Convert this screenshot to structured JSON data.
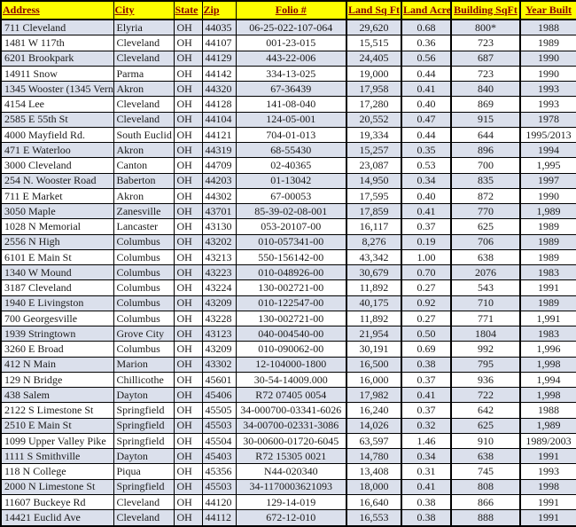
{
  "colors": {
    "header_bg": "#FFFF00",
    "header_text": "#8B0000",
    "row_alt_bg": "#DBE0EC",
    "row_bg": "#FFFFFF",
    "grid_border": "#000000",
    "body_text": "#1A1A1A"
  },
  "table": {
    "columns": [
      {
        "key": "address",
        "label": "Address"
      },
      {
        "key": "city",
        "label": "City"
      },
      {
        "key": "state",
        "label": "State"
      },
      {
        "key": "zip",
        "label": "Zip"
      },
      {
        "key": "folio",
        "label": "Folio #"
      },
      {
        "key": "land-sqft",
        "label": "Land Sq Ft"
      },
      {
        "key": "land-acre",
        "label": "Land Acre"
      },
      {
        "key": "building-sqft",
        "label": "Building SqFt"
      },
      {
        "key": "year-built",
        "label": "Year Built"
      }
    ],
    "rows": [
      [
        "711 Cleveland",
        "Elyria",
        "OH",
        "44035",
        "06-25-022-107-064",
        "29,620",
        "0.68",
        "800*",
        "1988"
      ],
      [
        "1481 W 117th",
        "Cleveland",
        "OH",
        "44107",
        "001-23-015",
        "15,515",
        "0.36",
        "723",
        "1989"
      ],
      [
        "6201 Brookpark",
        "Cleveland",
        "OH",
        "44129",
        "443-22-006",
        "24,405",
        "0.56",
        "687",
        "1990"
      ],
      [
        "14911 Snow",
        "Parma",
        "OH",
        "44142",
        "334-13-025",
        "19,000",
        "0.44",
        "723",
        "1990"
      ],
      [
        "1345 Wooster (1345 Vern",
        "Akron",
        "OH",
        "44320",
        "67-36439",
        "17,958",
        "0.41",
        "840",
        "1993"
      ],
      [
        "4154 Lee",
        "Cleveland",
        "OH",
        "44128",
        "141-08-040",
        "17,280",
        "0.40",
        "869",
        "1993"
      ],
      [
        "2585 E 55th St",
        "Cleveland",
        "OH",
        "44104",
        "124-05-001",
        "20,552",
        "0.47",
        "915",
        "1978"
      ],
      [
        "4000 Mayfield Rd.",
        "South Euclid",
        "OH",
        "44121",
        "704-01-013",
        "19,334",
        "0.44",
        "644",
        "1995/2013"
      ],
      [
        "471 E Waterloo",
        "Akron",
        "OH",
        "44319",
        "68-55430",
        "15,257",
        "0.35",
        "896",
        "1994"
      ],
      [
        "3000 Cleveland",
        "Canton",
        "OH",
        "44709",
        "02-40365",
        "23,087",
        "0.53",
        "700",
        "1,995"
      ],
      [
        "254 N. Wooster Road",
        "Baberton",
        "OH",
        "44203",
        "01-13042",
        "14,950",
        "0.34",
        "835",
        "1997"
      ],
      [
        "711 E Market",
        "Akron",
        "OH",
        "44302",
        "67-00053",
        "17,595",
        "0.40",
        "872",
        "1990"
      ],
      [
        "3050 Maple",
        "Zanesville",
        "OH",
        "43701",
        "85-39-02-08-001",
        "17,859",
        "0.41",
        "770",
        "1,989"
      ],
      [
        "1028 N Memorial",
        "Lancaster",
        "OH",
        "43130",
        "053-20107-00",
        "16,117",
        "0.37",
        "625",
        "1989"
      ],
      [
        "2556 N High",
        "Columbus",
        "OH",
        "43202",
        "010-057341-00",
        "8,276",
        "0.19",
        "706",
        "1989"
      ],
      [
        "6101 E Main St",
        "Columbus",
        "OH",
        "43213",
        "550-156142-00",
        "43,342",
        "1.00",
        "638",
        "1989"
      ],
      [
        "1340 W Mound",
        "Columbus",
        "OH",
        "43223",
        "010-048926-00",
        "30,679",
        "0.70",
        "2076",
        "1983"
      ],
      [
        "3187 Cleveland",
        "Columbus",
        "OH",
        "43224",
        "130-002721-00",
        "11,892",
        "0.27",
        "543",
        "1991"
      ],
      [
        "1940 E Livingston",
        "Columbus",
        "OH",
        "43209",
        "010-122547-00",
        "40,175",
        "0.92",
        "710",
        "1989"
      ],
      [
        "700 Georgesville",
        "Columbus",
        "OH",
        "43228",
        "130-002721-00",
        "11,892",
        "0.27",
        "771",
        "1,991"
      ],
      [
        "1939 Stringtown",
        "Grove City",
        "OH",
        "43123",
        "040-004540-00",
        "21,954",
        "0.50",
        "1804",
        "1983"
      ],
      [
        "3260 E Broad",
        "Columbus",
        "OH",
        "43209",
        "010-090062-00",
        "30,191",
        "0.69",
        "992",
        "1,996"
      ],
      [
        "412 N Main",
        "Marion",
        "OH",
        "43302",
        "12-104000-1800",
        "16,500",
        "0.38",
        "795",
        "1,998"
      ],
      [
        "129 N Bridge",
        "Chillicothe",
        "OH",
        "45601",
        "30-54-14009.000",
        "16,000",
        "0.37",
        "936",
        "1,994"
      ],
      [
        "438 Salem",
        "Dayton",
        "OH",
        "45406",
        "R72 07405 0054",
        "17,982",
        "0.41",
        "722",
        "1,998"
      ],
      [
        "2122 S Limestone St",
        "Springfield",
        "OH",
        "45505",
        "34-000700-03341-6026",
        "16,240",
        "0.37",
        "642",
        "1988"
      ],
      [
        "2510 E Main St",
        "Springfield",
        "OH",
        "45503",
        "34-00700-02331-3086",
        "14,026",
        "0.32",
        "625",
        "1,989"
      ],
      [
        "1099 Upper Valley Pike",
        "Springfield",
        "OH",
        "45504",
        "30-00600-01720-6045",
        "63,597",
        "1.46",
        "910",
        "1989/2003"
      ],
      [
        "1111 S Smithville",
        "Dayton",
        "OH",
        "45403",
        "R72 15305 0021",
        "14,780",
        "0.34",
        "638",
        "1991"
      ],
      [
        "118 N College",
        "Piqua",
        "OH",
        "45356",
        "N44-020340",
        "13,408",
        "0.31",
        "745",
        "1993"
      ],
      [
        "2000 N Limestone St",
        "Springfield",
        "OH",
        "45503",
        "34-1170003621093",
        "18,000",
        "0.41",
        "808",
        "1998"
      ],
      [
        "11607 Buckeye Rd",
        "Cleveland",
        "OH",
        "44120",
        "129-14-019",
        "16,640",
        "0.38",
        "866",
        "1991"
      ],
      [
        "14421 Euclid Ave",
        "Cleveland",
        "OH",
        "44112",
        "672-12-010",
        "16,553",
        "0.38",
        "888",
        "1991"
      ]
    ]
  }
}
